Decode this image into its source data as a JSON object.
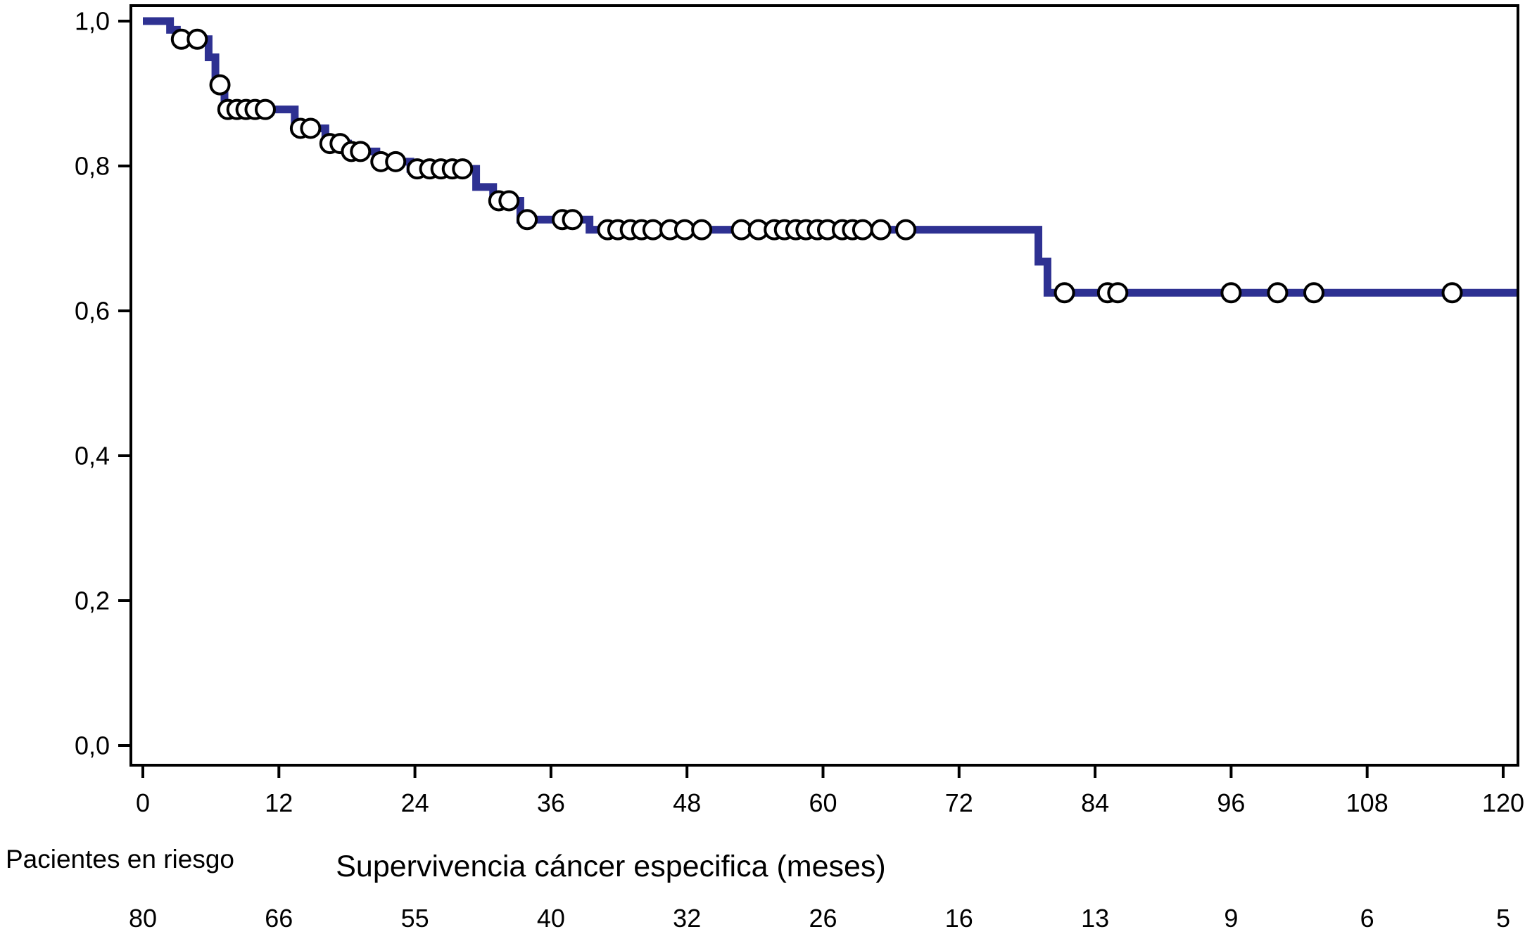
{
  "figure": {
    "background_color": "#ffffff",
    "frame_color": "#000000",
    "text_color": "#000000"
  },
  "chart_data": {
    "type": "line",
    "subtype": "kaplan_meier_step_curve",
    "title": "",
    "xlabel": "Supervivencia cáncer especifica (meses)",
    "ylabel": "",
    "xlim": [
      0,
      120
    ],
    "ylim": [
      0.0,
      1.0
    ],
    "grid": false,
    "legend_position": "none",
    "xticks": [
      0,
      12,
      24,
      36,
      48,
      60,
      72,
      84,
      96,
      108,
      120
    ],
    "yticks": [
      1.0,
      0.8,
      0.6,
      0.4,
      0.2,
      0.0
    ],
    "ytick_labels": [
      "1,0",
      "0,8",
      "0,6",
      "0,4",
      "0,2",
      "0,0"
    ],
    "line_color": "#2e3192",
    "censor_marker": {
      "shape": "open-circle",
      "fill": "#ffffff",
      "stroke": "#000000"
    },
    "series": [
      {
        "name": "Supervivencia cáncer específica",
        "steps": [
          [
            0,
            1.0
          ],
          [
            2.4,
            0.988
          ],
          [
            3.0,
            0.975
          ],
          [
            5.8,
            0.95
          ],
          [
            6.4,
            0.912
          ],
          [
            7.2,
            0.878
          ],
          [
            13.4,
            0.852
          ],
          [
            16.1,
            0.831
          ],
          [
            18.1,
            0.82
          ],
          [
            20.6,
            0.806
          ],
          [
            23.6,
            0.796
          ],
          [
            29.4,
            0.771
          ],
          [
            30.9,
            0.752
          ],
          [
            33.3,
            0.726
          ],
          [
            39.4,
            0.712
          ],
          [
            79.0,
            0.668
          ],
          [
            79.8,
            0.625
          ]
        ],
        "end_time": 120,
        "censors": [
          [
            3.4,
            0.975
          ],
          [
            4.8,
            0.975
          ],
          [
            6.8,
            0.912
          ],
          [
            7.5,
            0.878
          ],
          [
            8.3,
            0.878
          ],
          [
            9.1,
            0.878
          ],
          [
            9.9,
            0.878
          ],
          [
            10.8,
            0.878
          ],
          [
            13.9,
            0.852
          ],
          [
            14.8,
            0.852
          ],
          [
            16.5,
            0.831
          ],
          [
            17.4,
            0.831
          ],
          [
            18.4,
            0.82
          ],
          [
            19.2,
            0.82
          ],
          [
            21.0,
            0.806
          ],
          [
            22.3,
            0.806
          ],
          [
            24.2,
            0.796
          ],
          [
            25.3,
            0.796
          ],
          [
            26.3,
            0.796
          ],
          [
            27.3,
            0.796
          ],
          [
            28.2,
            0.796
          ],
          [
            31.4,
            0.752
          ],
          [
            32.3,
            0.752
          ],
          [
            33.9,
            0.726
          ],
          [
            37.0,
            0.726
          ],
          [
            37.9,
            0.726
          ],
          [
            41.0,
            0.712
          ],
          [
            41.9,
            0.712
          ],
          [
            43.0,
            0.712
          ],
          [
            44.0,
            0.712
          ],
          [
            45.0,
            0.712
          ],
          [
            46.5,
            0.712
          ],
          [
            47.8,
            0.712
          ],
          [
            49.3,
            0.712
          ],
          [
            52.8,
            0.712
          ],
          [
            54.3,
            0.712
          ],
          [
            55.7,
            0.712
          ],
          [
            56.6,
            0.712
          ],
          [
            57.6,
            0.712
          ],
          [
            58.5,
            0.712
          ],
          [
            59.5,
            0.712
          ],
          [
            60.4,
            0.712
          ],
          [
            61.7,
            0.712
          ],
          [
            62.6,
            0.712
          ],
          [
            63.5,
            0.712
          ],
          [
            65.1,
            0.712
          ],
          [
            67.3,
            0.712
          ],
          [
            81.3,
            0.625
          ],
          [
            85.1,
            0.625
          ],
          [
            86.0,
            0.625
          ],
          [
            96.0,
            0.625
          ],
          [
            100.1,
            0.625
          ],
          [
            103.3,
            0.625
          ],
          [
            115.5,
            0.625
          ]
        ]
      }
    ],
    "at_risk": {
      "label": "Pacientes en riesgo",
      "times": [
        0,
        12,
        24,
        36,
        48,
        60,
        72,
        84,
        96,
        108,
        120
      ],
      "counts": [
        80,
        66,
        55,
        40,
        32,
        26,
        16,
        13,
        9,
        6,
        5
      ]
    }
  }
}
